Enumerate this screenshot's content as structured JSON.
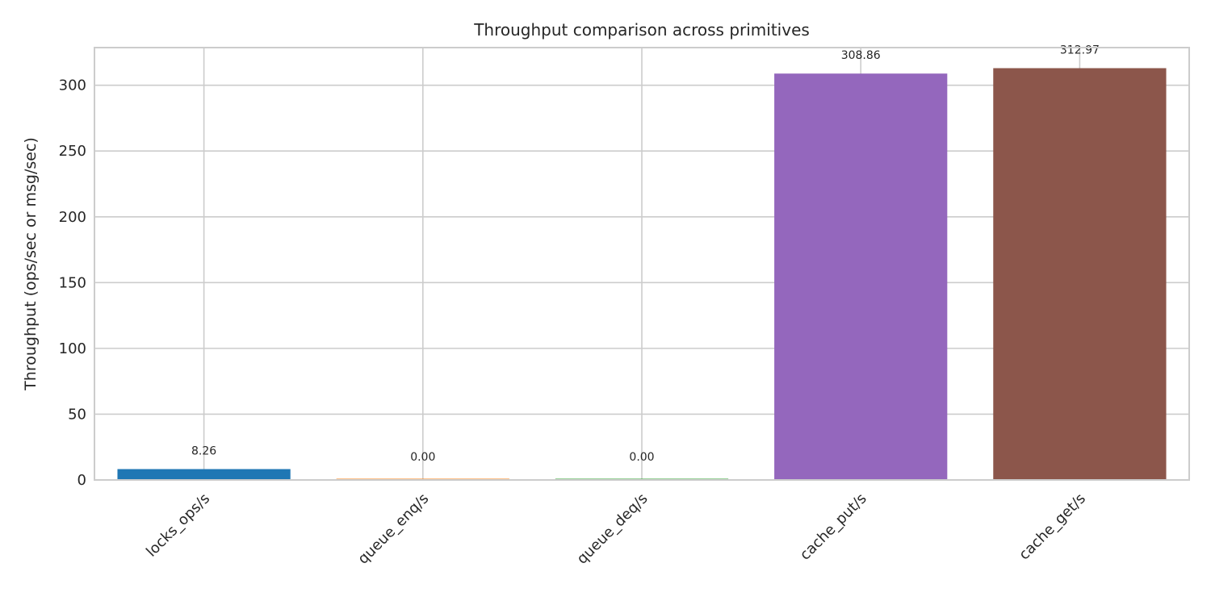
{
  "chart_data": {
    "type": "bar",
    "title": "Throughput comparison across primitives",
    "xlabel": "",
    "ylabel": "Throughput (ops/sec or msg/sec)",
    "categories": [
      "locks_ops/s",
      "queue_enq/s",
      "queue_deq/s",
      "cache_put/s",
      "cache_get/s"
    ],
    "values": [
      8.26,
      0.0,
      0.0,
      308.86,
      312.97
    ],
    "value_labels": [
      "8.26",
      "0.00",
      "0.00",
      "308.86",
      "312.97"
    ],
    "colors": [
      "#1f77b4",
      "#ff7f0e",
      "#2ca02c",
      "#9467bd",
      "#8c564b"
    ],
    "ylim": [
      0,
      328.6
    ],
    "yticks": [
      0,
      50,
      100,
      150,
      200,
      250,
      300
    ],
    "grid": true,
    "legend": false
  }
}
